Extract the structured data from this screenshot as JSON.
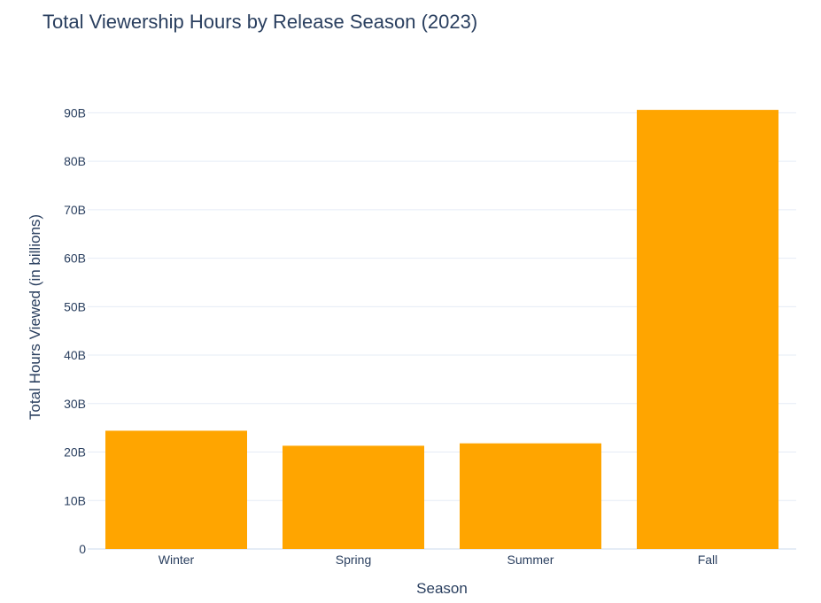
{
  "chart_data": {
    "type": "bar",
    "title": "Total Viewership Hours by Release Season (2023)",
    "xlabel": "Season",
    "ylabel": "Total Hours Viewed (in billions)",
    "categories": [
      "Winter",
      "Spring",
      "Summer",
      "Fall"
    ],
    "values": [
      24.4,
      21.3,
      21.8,
      90.6
    ],
    "ylim": [
      0,
      95
    ],
    "yticks": [
      0,
      10,
      20,
      30,
      40,
      50,
      60,
      70,
      80,
      90
    ],
    "ytick_labels": [
      "0",
      "10B",
      "20B",
      "30B",
      "40B",
      "50B",
      "60B",
      "70B",
      "80B",
      "90B"
    ],
    "grid": true,
    "legend": "none",
    "colors": {
      "bar": "#FFA500",
      "grid": "#E5ECF6",
      "text": "#2a3f5f"
    }
  }
}
